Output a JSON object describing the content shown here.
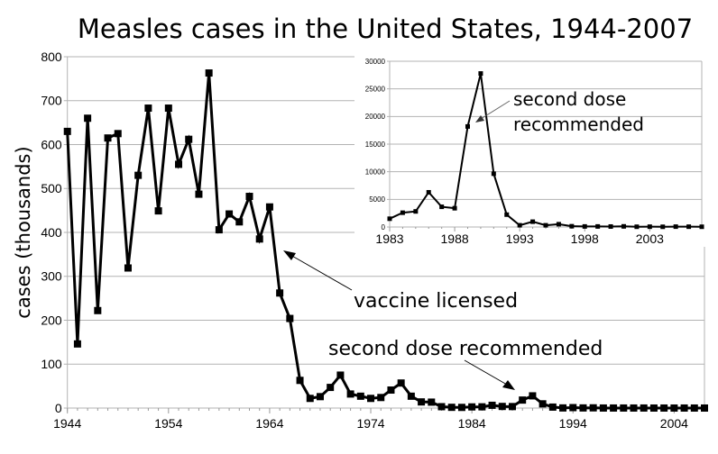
{
  "chart_data": [
    {
      "type": "line",
      "title": "Measles cases in the United States, 1944-2007",
      "xlabel": "",
      "ylabel": "cases (thousands)",
      "xlim": [
        1944,
        2007
      ],
      "ylim": [
        0,
        800
      ],
      "x_ticks": [
        "1944",
        "1954",
        "1964",
        "1974",
        "1984",
        "1994",
        "2004"
      ],
      "y_ticks": [
        "0",
        "100",
        "200",
        "300",
        "400",
        "500",
        "600",
        "700",
        "800"
      ],
      "grid": true,
      "marker": "square",
      "color": "#000000",
      "x": [
        1944,
        1945,
        1946,
        1947,
        1948,
        1949,
        1950,
        1951,
        1952,
        1953,
        1954,
        1955,
        1956,
        1957,
        1958,
        1959,
        1960,
        1961,
        1962,
        1963,
        1964,
        1965,
        1966,
        1967,
        1968,
        1969,
        1970,
        1971,
        1972,
        1973,
        1974,
        1975,
        1976,
        1977,
        1978,
        1979,
        1980,
        1981,
        1982,
        1983,
        1984,
        1985,
        1986,
        1987,
        1988,
        1989,
        1990,
        1991,
        1992,
        1993,
        1994,
        1995,
        1996,
        1997,
        1998,
        1999,
        2000,
        2001,
        2002,
        2003,
        2004,
        2005,
        2006,
        2007
      ],
      "values": [
        630,
        146,
        660,
        222,
        615,
        625,
        319,
        530,
        683,
        449,
        683,
        555,
        612,
        487,
        763,
        406,
        442,
        424,
        482,
        385,
        458,
        262,
        204,
        63,
        22,
        26,
        47,
        75,
        32,
        27,
        22,
        24,
        41,
        57,
        27,
        14,
        13.5,
        3.1,
        1.7,
        1.5,
        2.6,
        2.8,
        6.3,
        3.7,
        3.4,
        18.2,
        27.8,
        9.6,
        2.2,
        0.3,
        1.0,
        0.3,
        0.5,
        0.1,
        0.1,
        0.1,
        0.09,
        0.12,
        0.04,
        0.06,
        0.04,
        0.07,
        0.06,
        0.04
      ],
      "annotations": [
        {
          "text": "vaccine licensed",
          "points_to": 1965
        },
        {
          "text": "second dose recommended",
          "points_to": 1989
        }
      ]
    },
    {
      "type": "line",
      "title": "",
      "xlabel": "",
      "ylabel": "",
      "xlim": [
        1983,
        2007
      ],
      "ylim": [
        0,
        30000
      ],
      "x_ticks": [
        "1983",
        "1988",
        "1993",
        "1998",
        "2003"
      ],
      "y_ticks": [
        "0",
        "5000",
        "10000",
        "15000",
        "20000",
        "25000",
        "30000"
      ],
      "grid": true,
      "marker": "square",
      "color": "#000000",
      "x": [
        1983,
        1984,
        1985,
        1986,
        1987,
        1988,
        1989,
        1990,
        1991,
        1992,
        1993,
        1994,
        1995,
        1996,
        1997,
        1998,
        1999,
        2000,
        2001,
        2002,
        2003,
        2004,
        2005,
        2006,
        2007
      ],
      "values": [
        1497,
        2587,
        2822,
        6282,
        3655,
        3396,
        18193,
        27786,
        9643,
        2237,
        312,
        963,
        309,
        508,
        138,
        100,
        100,
        86,
        116,
        44,
        56,
        37,
        66,
        55,
        43
      ],
      "annotations": [
        {
          "text": "second dose recommended",
          "points_to": 1989.5
        }
      ]
    }
  ]
}
